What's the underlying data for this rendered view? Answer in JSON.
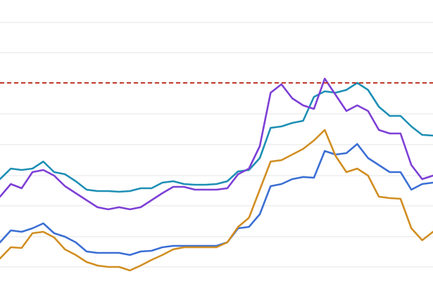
{
  "chart_data": {
    "type": "line",
    "x": [
      0,
      1,
      2,
      3,
      4,
      5,
      6,
      7,
      8,
      9,
      10,
      11,
      12,
      13,
      14,
      15,
      16,
      17,
      18,
      19,
      20,
      21,
      22,
      23,
      24,
      25,
      26,
      27,
      28,
      29,
      30,
      31,
      32,
      33,
      34,
      35,
      36,
      37,
      38,
      39,
      40
    ],
    "xlim": [
      0,
      40
    ],
    "ylim": [
      0,
      410
    ],
    "yticks": [
      30,
      73,
      117,
      160,
      204,
      248,
      292,
      335,
      378
    ],
    "grid": true,
    "grid_color": "#e6e6e6",
    "reference_line": {
      "value": 292,
      "color": "#c0392b"
    },
    "series": [
      {
        "color": "#1e8fb5",
        "values": [
          155,
          170,
          168,
          170,
          180,
          165,
          162,
          152,
          140,
          138,
          138,
          137,
          138,
          142,
          142,
          150,
          152,
          148,
          147,
          147,
          148,
          152,
          166,
          168,
          185,
          228,
          230,
          235,
          238,
          272,
          280,
          278,
          282,
          292,
          282,
          258,
          245,
          245,
          230,
          218,
          217
        ]
      },
      {
        "color": "#7d3fd6",
        "values": [
          130,
          148,
          142,
          165,
          168,
          160,
          145,
          135,
          125,
          115,
          112,
          115,
          112,
          115,
          125,
          135,
          144,
          144,
          140,
          140,
          140,
          142,
          162,
          170,
          202,
          278,
          290,
          270,
          260,
          255,
          298,
          275,
          252,
          260,
          252,
          225,
          220,
          220,
          175,
          155,
          160
        ]
      },
      {
        "color": "#3b6fd4",
        "values": [
          65,
          82,
          80,
          85,
          92,
          78,
          73,
          65,
          52,
          50,
          50,
          50,
          47,
          52,
          53,
          58,
          60,
          60,
          60,
          60,
          60,
          65,
          85,
          87,
          105,
          145,
          148,
          155,
          158,
          157,
          195,
          190,
          192,
          205,
          185,
          175,
          165,
          165,
          140,
          148,
          150
        ]
      },
      {
        "color": "#d18e22",
        "values": [
          42,
          58,
          57,
          78,
          80,
          72,
          55,
          47,
          37,
          32,
          30,
          30,
          25,
          32,
          40,
          47,
          55,
          58,
          58,
          58,
          58,
          65,
          87,
          100,
          140,
          180,
          182,
          190,
          198,
          210,
          225,
          188,
          165,
          170,
          160,
          130,
          128,
          127,
          85,
          68,
          80
        ]
      }
    ]
  }
}
